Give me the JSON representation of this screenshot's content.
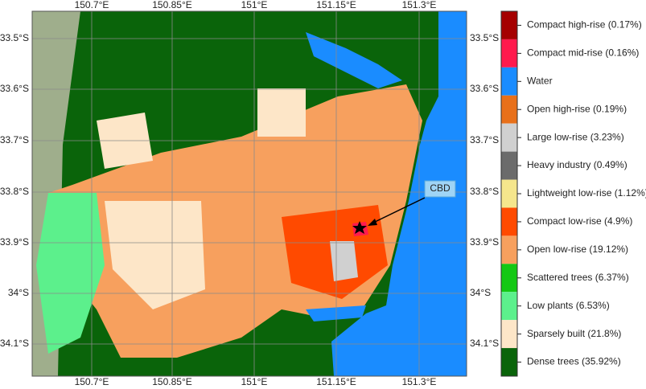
{
  "map": {
    "lon_ticks": [
      "150.7°E",
      "150.85°E",
      "151°E",
      "151.15°E",
      "151.3°E"
    ],
    "lat_ticks": [
      "33.5°S",
      "33.6°S",
      "33.7°S",
      "33.8°S",
      "33.9°S",
      "34°S",
      "34.1°S"
    ],
    "annotation": "CBD",
    "legend": [
      {
        "label": "Compact high-rise (0.17%)",
        "color": "#a50000"
      },
      {
        "label": "Compact mid-rise (0.16%)",
        "color": "#ff1a4d"
      },
      {
        "label": "Water",
        "color": "#1a8cff"
      },
      {
        "label": "Open high-rise (0.19%)",
        "color": "#e8701a"
      },
      {
        "label": "Large low-rise (3.23%)",
        "color": "#d0d0d0"
      },
      {
        "label": "Heavy industry (0.49%)",
        "color": "#6b6b6b"
      },
      {
        "label": "Lightweight low-rise (1.12%)",
        "color": "#f5e68c"
      },
      {
        "label": "Compact low-rise (4.9%)",
        "color": "#ff4a00"
      },
      {
        "label": "Open low-rise (19.12%)",
        "color": "#f7a05e"
      },
      {
        "label": "Scattered trees (6.37%)",
        "color": "#14c814"
      },
      {
        "label": "Low plants (6.53%)",
        "color": "#5cf08c"
      },
      {
        "label": "Sparsely built (21.8%)",
        "color": "#fde6c8"
      },
      {
        "label": "Dense trees (35.92%)",
        "color": "#0a640a"
      }
    ]
  }
}
